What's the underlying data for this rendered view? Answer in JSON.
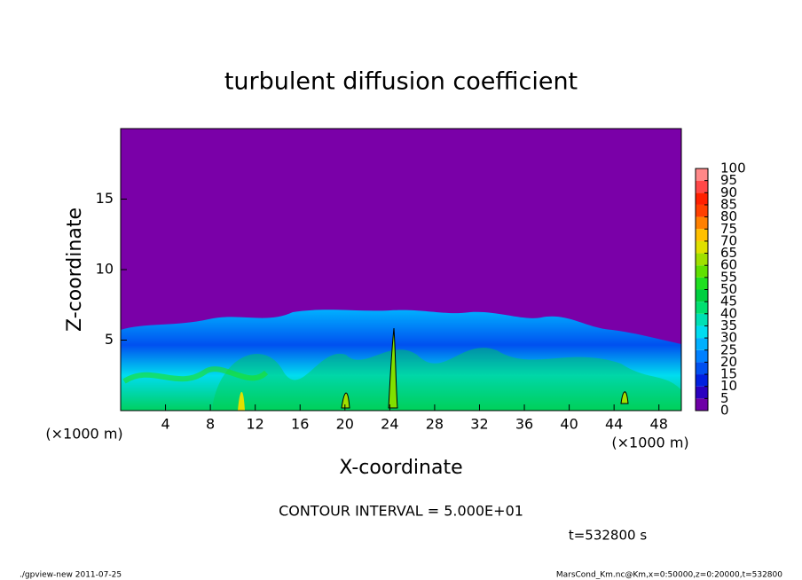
{
  "chart_data": {
    "type": "contour",
    "title": "turbulent diffusion coefficient",
    "x_label": "X-coordinate",
    "y_label": "Z-coordinate",
    "x_unit": "(×1000 m)",
    "xlim": [
      0,
      50
    ],
    "ylim": [
      0,
      20
    ],
    "xticks": [
      4,
      8,
      12,
      16,
      20,
      24,
      28,
      32,
      36,
      40,
      44,
      48
    ],
    "yticks": [
      5,
      10,
      15
    ],
    "colorbar": {
      "ticks": [
        0,
        5,
        10,
        15,
        20,
        25,
        30,
        35,
        40,
        45,
        50,
        55,
        60,
        65,
        70,
        75,
        80,
        85,
        90,
        95,
        100
      ],
      "colors": [
        "#6e00a6",
        "#2a00bf",
        "#0020e0",
        "#0050f0",
        "#0080ff",
        "#00b0ff",
        "#00dcf0",
        "#00e0b4",
        "#00e070",
        "#00d040",
        "#20e020",
        "#60e000",
        "#a0e000",
        "#e0e000",
        "#ffc000",
        "#ff8000",
        "#ff4000",
        "#ff2000",
        "#ff4848",
        "#ff8888"
      ]
    },
    "annotations": [
      "CONTOUR INTERVAL = 5.000E+01",
      "t=532800 s"
    ],
    "footer_left": "./gpview-new  2011-07-25",
    "footer_right": "MarsCond_Km.nc@Km,x=0:50000,z=0:20000,t=532800"
  }
}
